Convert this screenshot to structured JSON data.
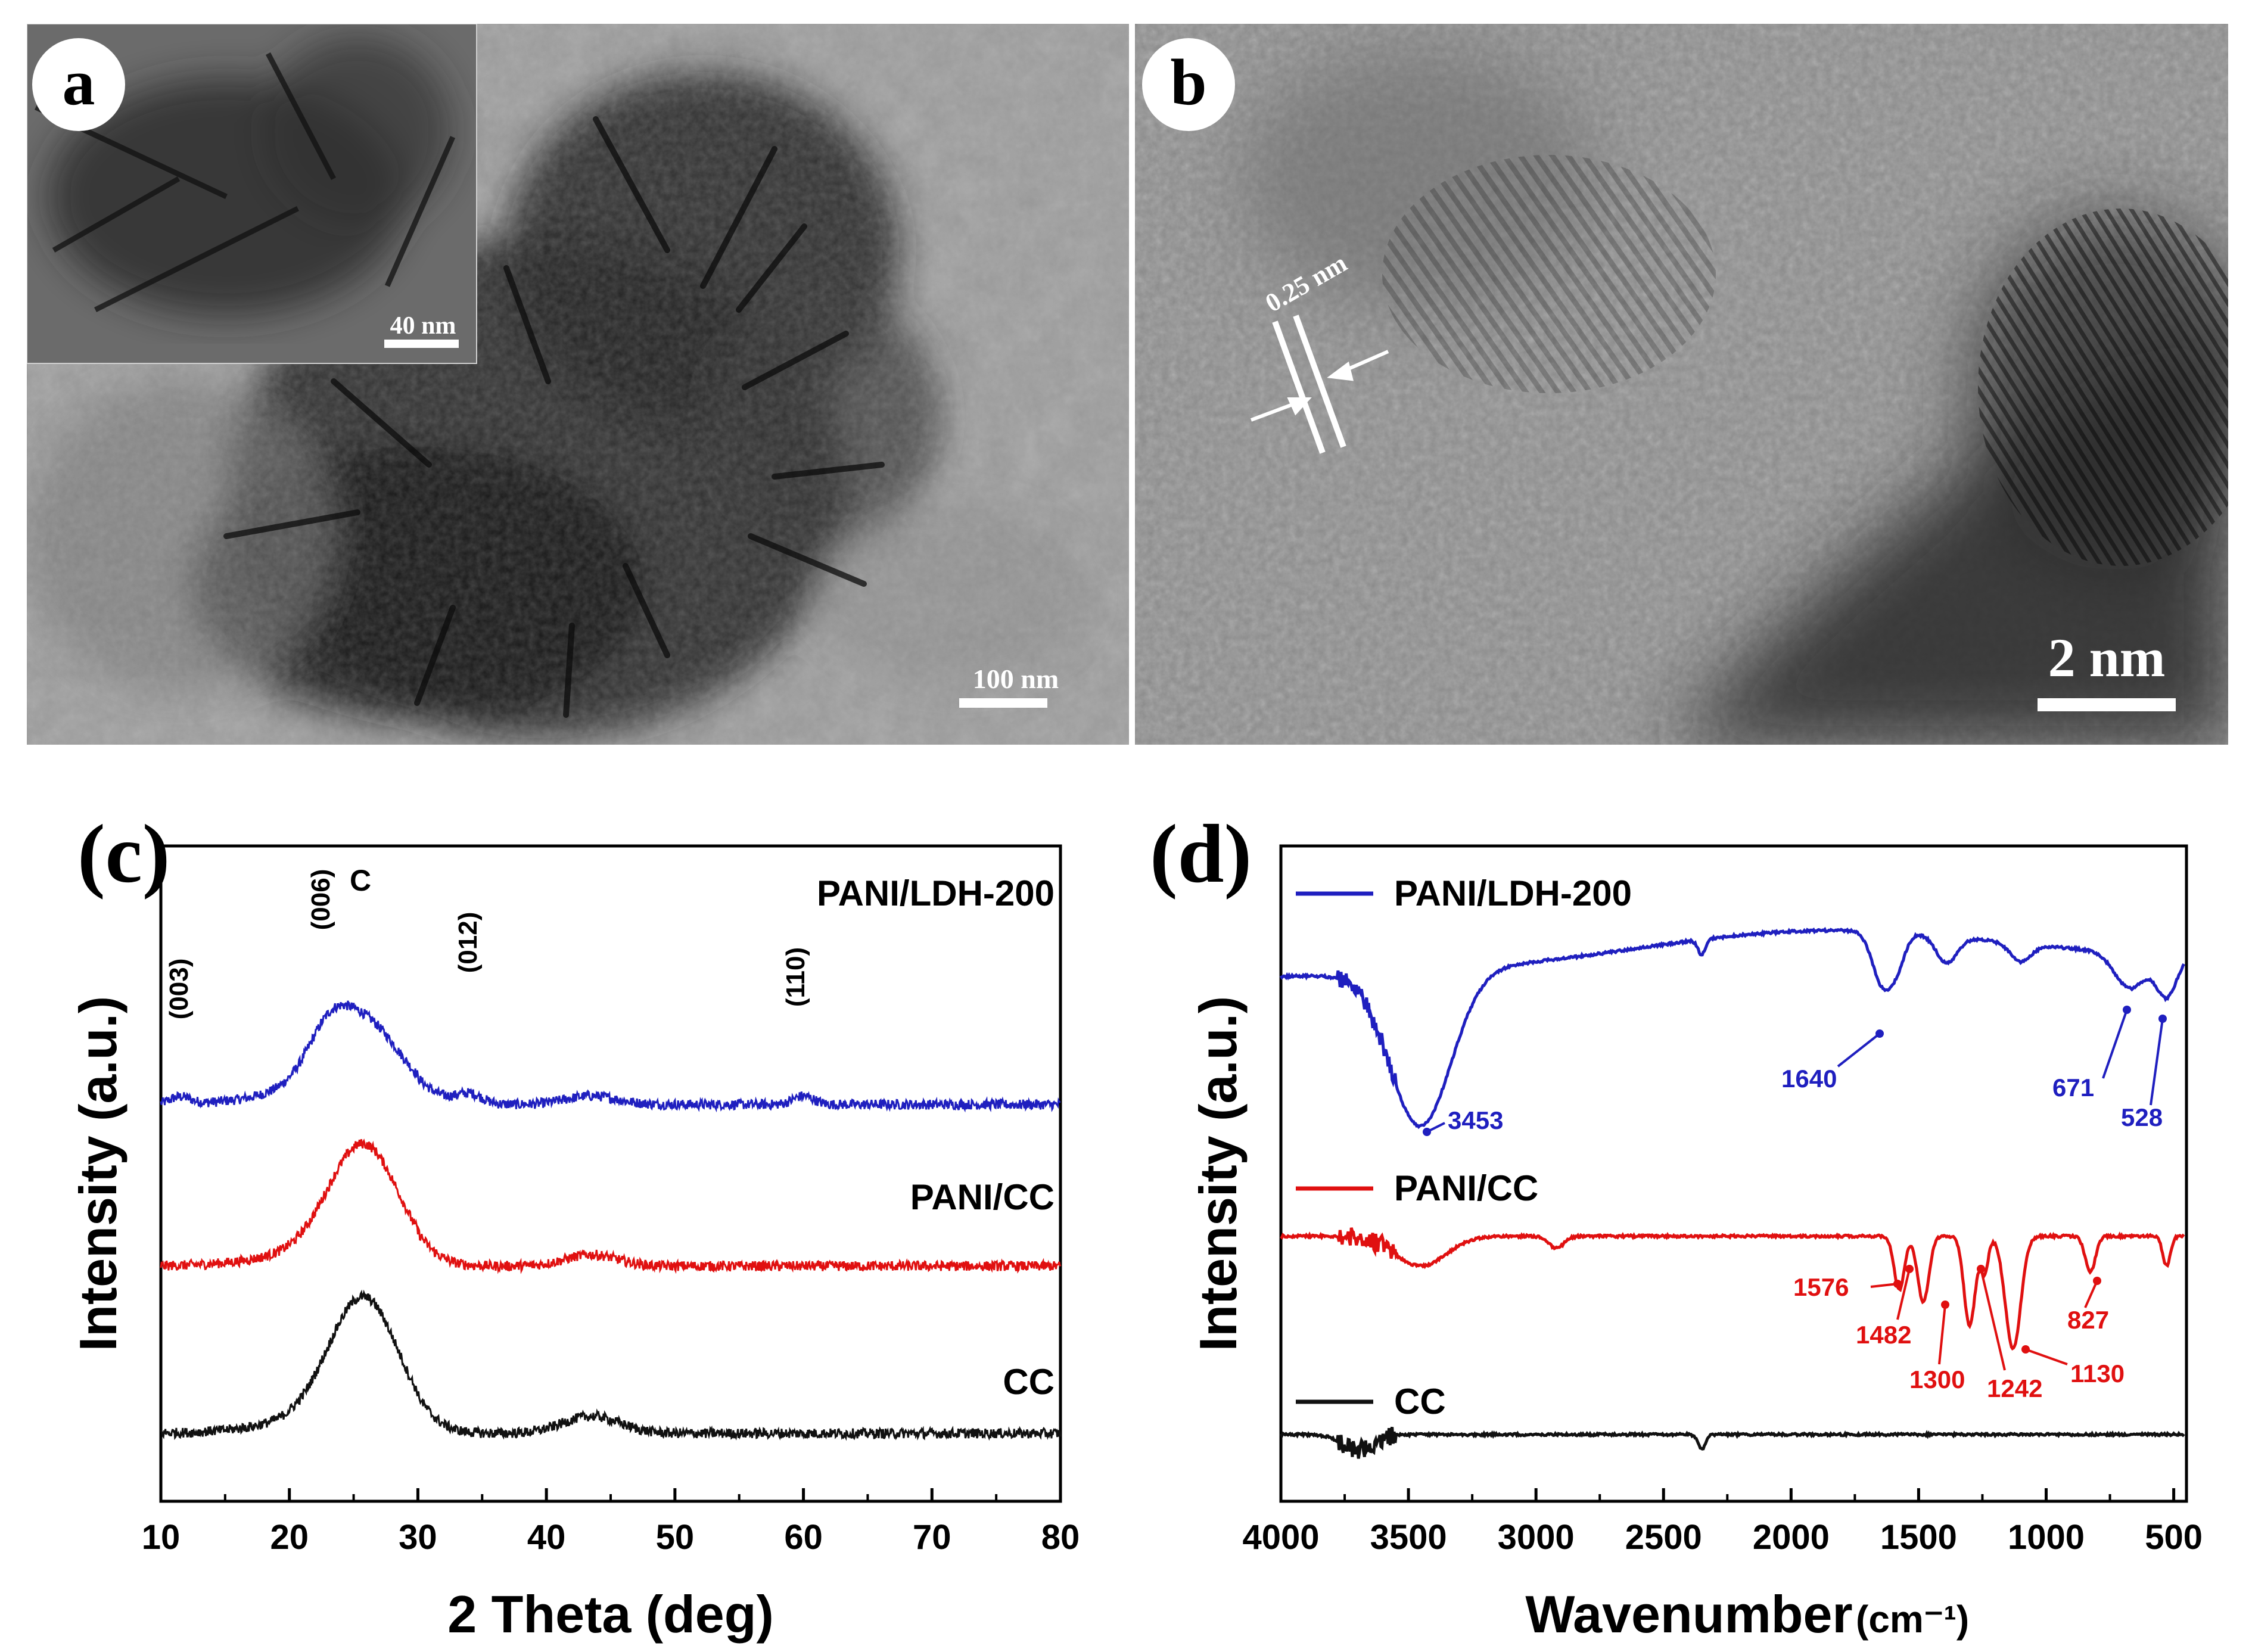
{
  "panel_a": {
    "label": "a",
    "scale_bar_main": "100 nm",
    "scale_bar_inset": "40 nm"
  },
  "panel_b": {
    "label": "b",
    "lattice_spacing": "0.25 nm",
    "scale_bar": "2 nm"
  },
  "chart_data": [
    {
      "id": "c",
      "panel_label": "(c)",
      "type": "line",
      "xlabel": "2 Theta (deg)",
      "ylabel": "Intensity (a.u.)",
      "xlim": [
        10,
        80
      ],
      "xticks": [
        10,
        20,
        30,
        40,
        50,
        60,
        70,
        80
      ],
      "yticks_shown": false,
      "series": [
        {
          "name": "PANI/LDH-200",
          "color": "#1f1fbf",
          "offset": 2.2,
          "peaks": [
            [
              25.6,
              0.55,
              3.0
            ],
            [
              23.0,
              0.18,
              1.5
            ],
            [
              34.0,
              0.07,
              1.0
            ],
            [
              43.5,
              0.06,
              2.0
            ],
            [
              60.0,
              0.06,
              0.8
            ],
            [
              11.5,
              0.05,
              0.8
            ]
          ],
          "base": [
            0.15,
            0.05
          ]
        },
        {
          "name": "PANI/CC",
          "color": "#e01010",
          "offset": 1.15,
          "peaks": [
            [
              25.8,
              0.8,
              2.7
            ],
            [
              43.5,
              0.08,
              2.0
            ]
          ],
          "base": [
            0.12,
            0.0
          ]
        },
        {
          "name": "CC",
          "color": "#111111",
          "offset": 0.0,
          "peaks": [
            [
              25.8,
              0.9,
              2.7
            ],
            [
              43.5,
              0.12,
              2.2
            ]
          ],
          "base": [
            0.1,
            0.0
          ]
        }
      ],
      "annotations": [
        "(003)",
        "(006)",
        "C",
        "(012)",
        "(110)"
      ]
    },
    {
      "id": "d",
      "panel_label": "(d)",
      "type": "line",
      "xlabel": "Wavenumber",
      "xlabel_unit": "(cm⁻¹)",
      "ylabel": "Intensity (a.u.)",
      "xlim": [
        4000,
        450
      ],
      "xticks": [
        4000,
        3500,
        3000,
        2500,
        2000,
        1500,
        1000,
        500
      ],
      "yticks_shown": false,
      "series": [
        {
          "name": "PANI/LDH-200",
          "color": "#1f1fbf"
        },
        {
          "name": "PANI/CC",
          "color": "#e01010"
        },
        {
          "name": "CC",
          "color": "#111111"
        }
      ],
      "peak_labels": {
        "PANI/LDH-200": [
          "3453",
          "1640",
          "671",
          "528"
        ],
        "PANI/CC": [
          "1576",
          "1482",
          "1300",
          "1242",
          "1130",
          "827"
        ]
      }
    }
  ]
}
